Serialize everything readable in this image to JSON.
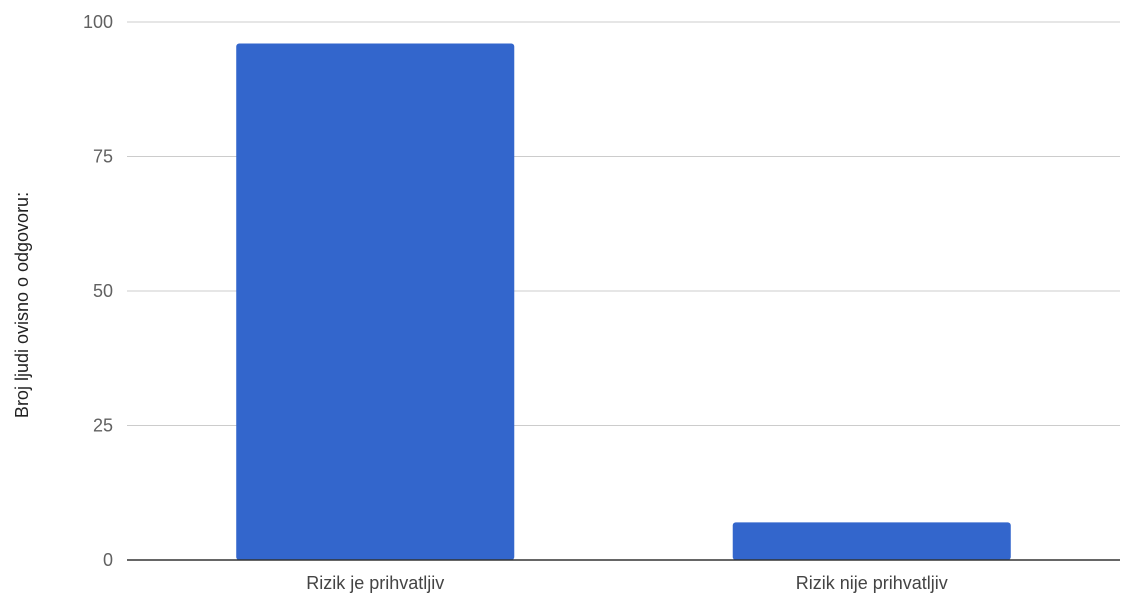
{
  "chart_data": {
    "type": "bar",
    "categories": [
      "Rizik je prihvatljiv",
      "Rizik nije prihvatljiv"
    ],
    "values": [
      96,
      7
    ],
    "title": "",
    "xlabel": "",
    "ylabel": "Broj ljudi ovisno o odgovoru:",
    "ylim": [
      0,
      100
    ],
    "yticks": [
      0,
      25,
      50,
      75,
      100
    ],
    "grid": true,
    "legend": "none",
    "bar_color": "#3366cc",
    "grid_color": "#cccccc",
    "baseline_color": "#333333"
  }
}
